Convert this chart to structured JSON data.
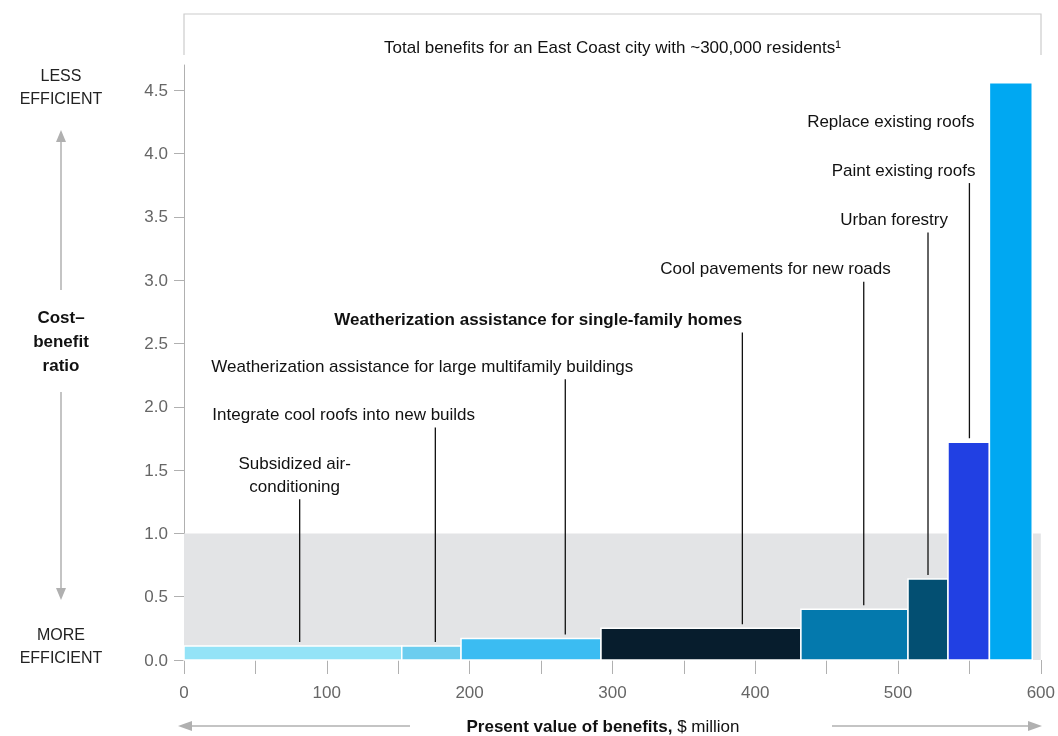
{
  "chart_data": {
    "type": "histogram",
    "title": "Total benefits for an East Coast city with ~300,000 residents¹",
    "xlabel": "Present value of benefits, $ million",
    "ylabel": "Cost–benefit ratio",
    "bins": [
      0,
      152.5,
      194,
      292,
      432,
      507,
      535,
      564,
      594
    ],
    "values": [
      0.11,
      0.11,
      0.17,
      0.25,
      0.4,
      0.64,
      1.72,
      4.56
    ],
    "colors": [
      "#94e3f7",
      "#6ccdef",
      "#3bbcf2",
      "#071d2d",
      "#0479ad",
      "#034f72",
      "#2140e3",
      "#00a8f2"
    ],
    "xlim": [
      0,
      600
    ],
    "xticks": [
      0,
      {
        "value": 50,
        "label": null
      },
      100,
      {
        "value": 150,
        "label": null
      },
      200,
      {
        "value": 250,
        "label": null
      },
      300,
      {
        "value": 350,
        "label": null
      },
      400,
      {
        "value": 450,
        "label": null
      },
      500,
      {
        "value": 550,
        "label": null
      },
      600
    ],
    "ylim": [
      0,
      4.7
    ],
    "yticks": [
      {
        "value": 0,
        "label": "0.0"
      },
      0.5,
      {
        "value": 1,
        "label": "1.0"
      },
      1.5,
      {
        "value": 2,
        "label": "2.0"
      },
      2.5,
      {
        "value": 3,
        "label": "3.0"
      },
      3.5,
      {
        "value": 4,
        "label": "4.0"
      },
      4.5
    ],
    "grid": false,
    "bands": [
      {
        "axis": "y",
        "from": 0,
        "to": 1,
        "color": "#e3e4e6"
      }
    ],
    "annotations": [
      "LESS EFFICIENT",
      "MORE EFFICIENT",
      {
        "text": "Subsidized air-conditioning",
        "x": 81,
        "y": 0.11
      },
      {
        "text": "Integrate cool roofs into new builds",
        "x": 176,
        "y": 0.11
      },
      {
        "text": "Weatherization assistance for large multifamily buildings",
        "x": 267,
        "y": 0.17
      },
      {
        "text": "Weatherization assistance for single-family homes",
        "x": 391,
        "y": 0.25
      },
      {
        "text": "Cool pavements for new roads",
        "x": 476,
        "y": 0.4
      },
      {
        "text": "Urban forestry",
        "x": 521,
        "y": 0.64
      },
      {
        "text": "Paint existing roofs",
        "x": 550,
        "y": 1.72
      },
      {
        "text": "Replace existing roofs",
        "x": 564,
        "y": 4.56
      }
    ]
  }
}
